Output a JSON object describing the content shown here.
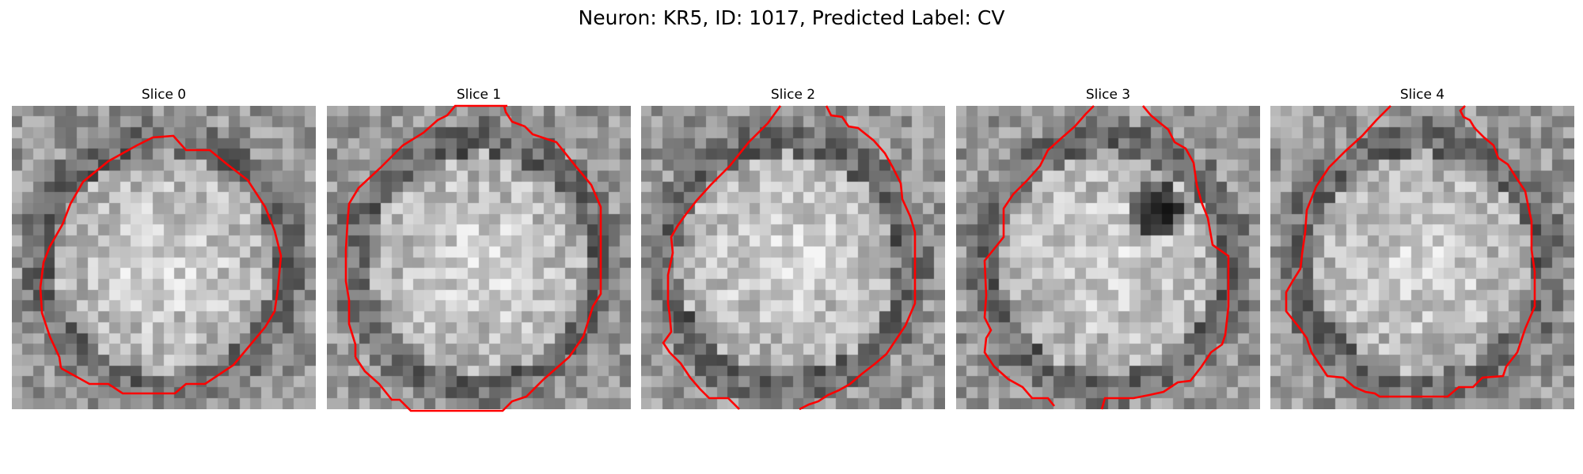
{
  "figure": {
    "title": "Neuron: KR5, ID: 1017, Predicted Label: CV",
    "contour_color": "#ff0000",
    "colormap": "gray"
  },
  "slices": [
    {
      "title": "Slice 0",
      "dark_spot": null
    },
    {
      "title": "Slice 1",
      "dark_spot": null
    },
    {
      "title": "Slice 2",
      "dark_spot": null
    },
    {
      "title": "Slice 3",
      "dark_spot": "upper-right"
    },
    {
      "title": "Slice 4",
      "dark_spot": null
    }
  ]
}
